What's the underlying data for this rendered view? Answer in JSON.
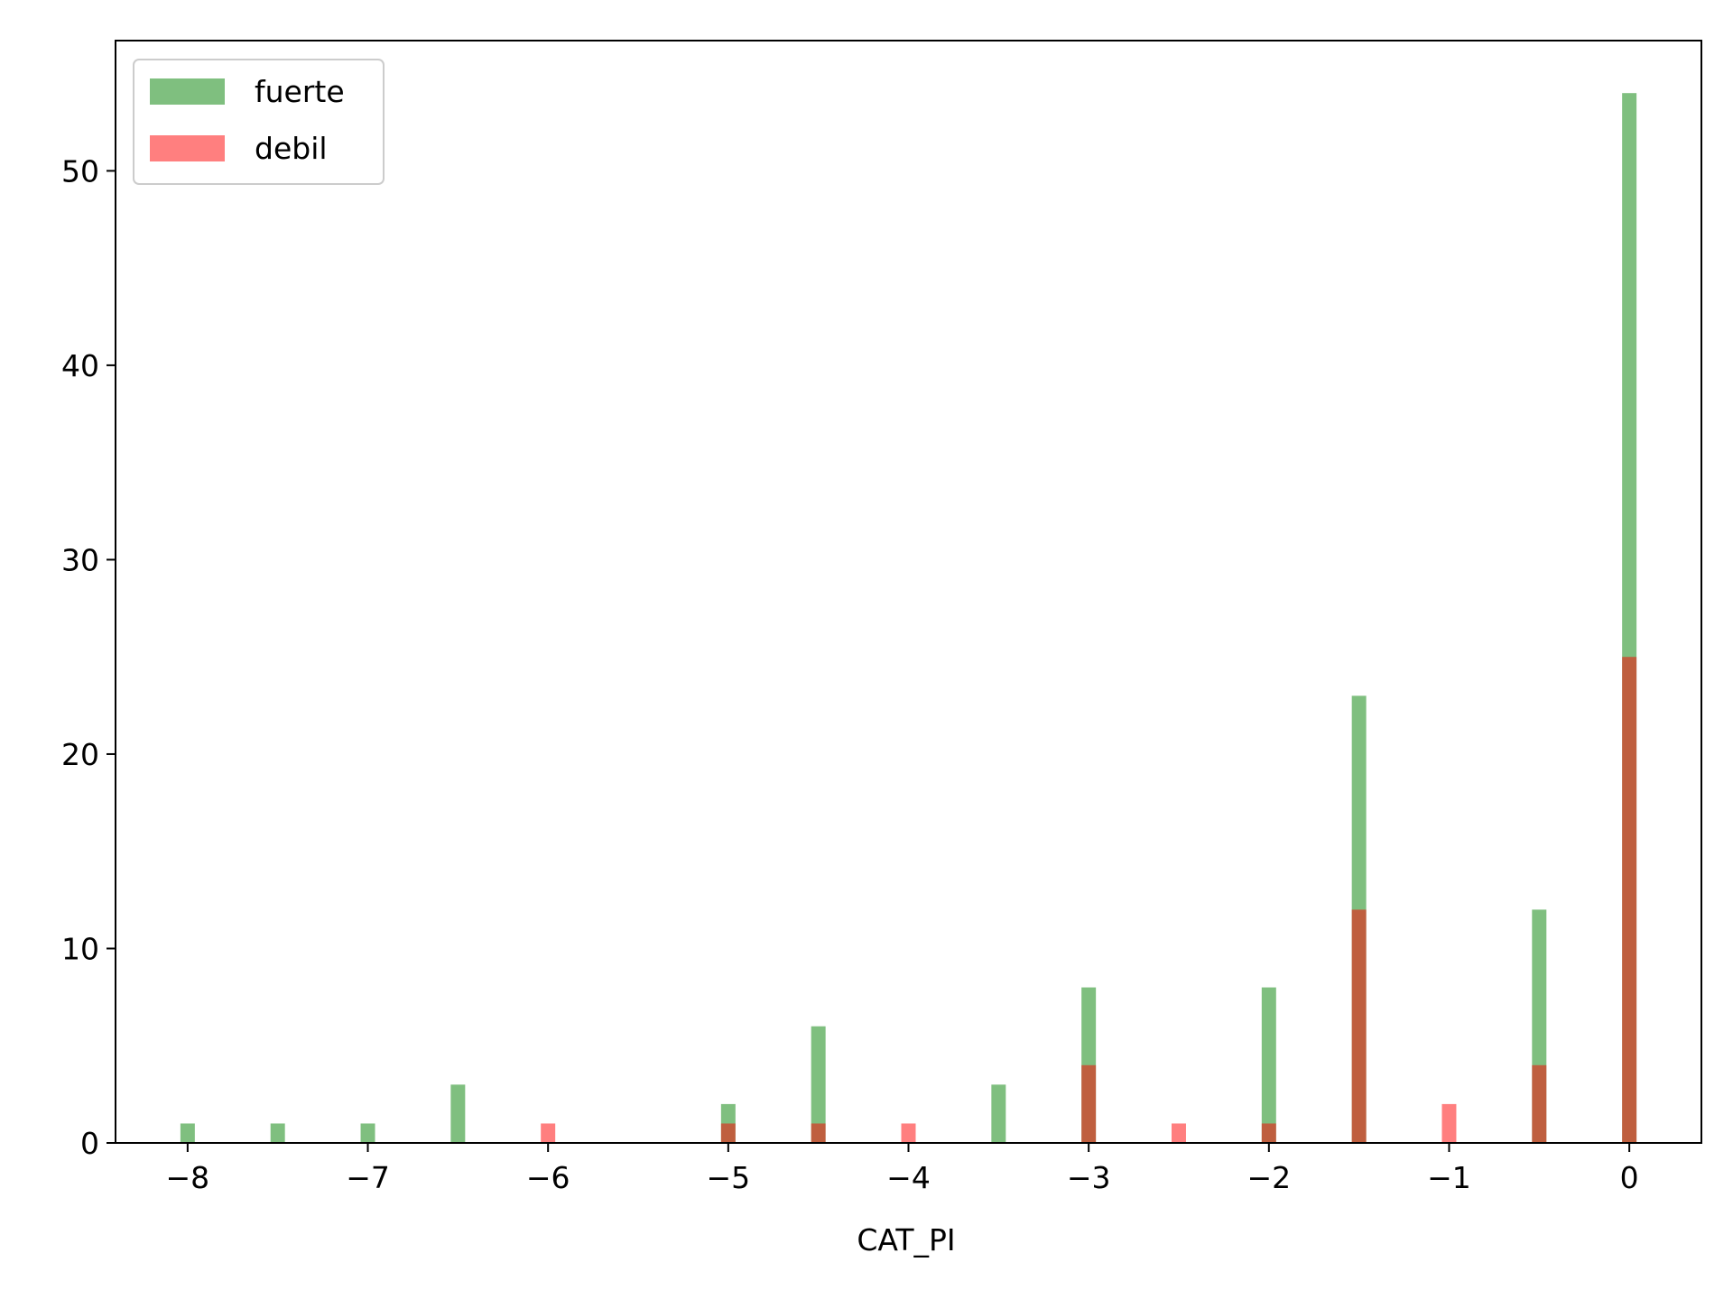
{
  "chart_data": {
    "type": "bar",
    "xlabel": "CAT_PI",
    "ylabel": "",
    "xlim": [
      -8.4,
      0.4
    ],
    "ylim": [
      0,
      56.7
    ],
    "xticks": [
      -8,
      -7,
      -6,
      -5,
      -4,
      -3,
      -2,
      -1,
      0
    ],
    "xtick_labels": [
      "−8",
      "−7",
      "−6",
      "−5",
      "−4",
      "−3",
      "−2",
      "−1",
      "0"
    ],
    "yticks": [
      0,
      10,
      20,
      30,
      40,
      50
    ],
    "ytick_labels": [
      "0",
      "10",
      "20",
      "30",
      "40",
      "50"
    ],
    "bin_width": 0.08,
    "legend_position": "upper-left",
    "series": [
      {
        "name": "fuerte",
        "color": "#008000",
        "opacity": 0.5,
        "x": [
          -8,
          -7.5,
          -7,
          -6.5,
          -5,
          -4.5,
          -3.5,
          -3,
          -2,
          -1.5,
          -0.5,
          0
        ],
        "values": [
          1,
          1,
          1,
          3,
          2,
          6,
          3,
          8,
          8,
          23,
          12,
          54
        ]
      },
      {
        "name": "debil",
        "color": "#ff0000",
        "opacity": 0.5,
        "x": [
          -6,
          -5,
          -4.5,
          -4,
          -3,
          -2.5,
          -2,
          -1.5,
          -1,
          -0.5,
          0
        ],
        "values": [
          1,
          1,
          1,
          1,
          4,
          1,
          1,
          12,
          2,
          4,
          25
        ]
      }
    ]
  }
}
